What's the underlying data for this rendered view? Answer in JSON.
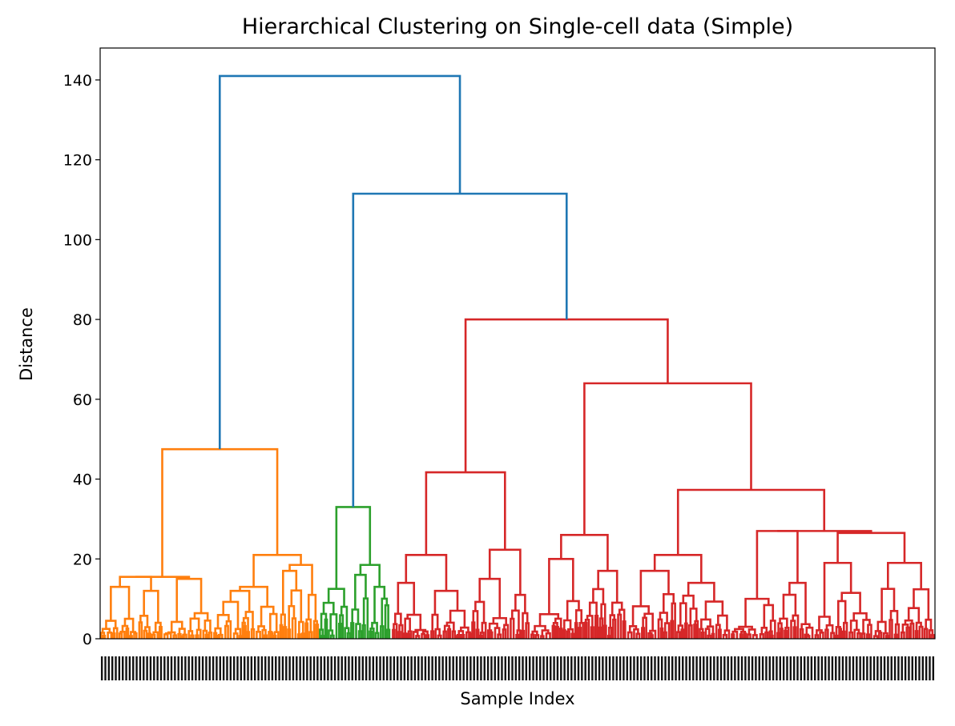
{
  "chart_data": {
    "type": "dendrogram",
    "title": "Hierarchical Clustering on Single-cell data (Simple)",
    "xlabel": "Sample Index",
    "ylabel": "Distance",
    "ylim": [
      0,
      148
    ],
    "yticks": [
      0,
      20,
      40,
      60,
      80,
      100,
      120,
      140
    ],
    "grid": false,
    "leaf_tick_labels": "dense unreadable sample index labels along the x-axis",
    "colors": {
      "root": "#1f77b4",
      "cluster_1": "#ff7f0e",
      "cluster_2": "#2ca02c",
      "cluster_3": "#d62728"
    },
    "clusters": [
      {
        "color_key": "cluster_1",
        "top_merge_distance": 47.5,
        "approx_leaf_share": 0.26
      },
      {
        "color_key": "cluster_2",
        "top_merge_distance": 33,
        "approx_leaf_share": 0.09
      },
      {
        "color_key": "cluster_3",
        "top_merge_distance": 80,
        "approx_leaf_share": 0.65
      }
    ],
    "merges": [
      {
        "color_key": "root",
        "height": 141,
        "children": [
          "cluster_1",
          "merge_111"
        ]
      },
      {
        "id": "merge_111",
        "color_key": "root",
        "height": 111.5,
        "children": [
          "cluster_2",
          "cluster_3"
        ]
      },
      {
        "color_key": "cluster_3",
        "height": 80,
        "children": [
          41.7,
          64
        ]
      },
      {
        "color_key": "cluster_3",
        "height": 64,
        "children": [
          26,
          37.3
        ]
      },
      {
        "color_key": "cluster_3",
        "height": 37.3,
        "children": [
          21,
          27
        ]
      },
      {
        "color_key": "cluster_3",
        "height": 41.7,
        "children": [
          21,
          22.3
        ]
      },
      {
        "color_key": "cluster_1",
        "height": 47.5,
        "children": [
          15.5,
          21
        ]
      },
      {
        "color_key": "cluster_2",
        "height": 33,
        "children": [
          12.5,
          18.5
        ]
      }
    ]
  }
}
